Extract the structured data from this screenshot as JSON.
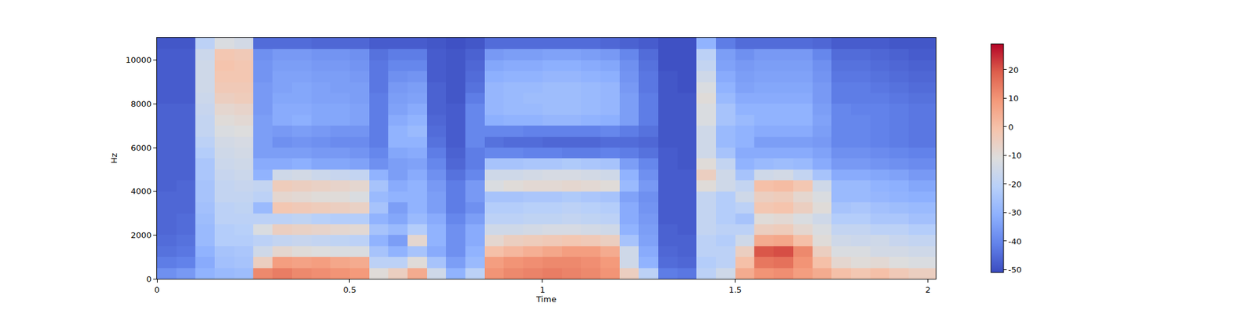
{
  "chart_data": {
    "type": "heatmap",
    "x_label": "Time",
    "y_label": "Hz",
    "x_edges": [
      0,
      0.05,
      0.1,
      0.15,
      0.2,
      0.25,
      0.3,
      0.35,
      0.4,
      0.45,
      0.5,
      0.55,
      0.6,
      0.65,
      0.7,
      0.75,
      0.8,
      0.85,
      0.9,
      0.95,
      1.0,
      1.05,
      1.1,
      1.15,
      1.2,
      1.25,
      1.3,
      1.35,
      1.4,
      1.45,
      1.5,
      1.55,
      1.6,
      1.65,
      1.7,
      1.75,
      1.8,
      1.85,
      1.9,
      1.95,
      2.02
    ],
    "y_edges": [
      0,
      500,
      1000,
      1500,
      2000,
      2500,
      3000,
      3500,
      4000,
      4500,
      5000,
      5500,
      6000,
      6500,
      7000,
      7500,
      8000,
      8500,
      9000,
      9500,
      10000,
      10500,
      11025
    ],
    "cells": [
      [
        -38,
        -42,
        -44,
        -45,
        -46,
        -46,
        -46,
        -46,
        -47,
        -47,
        -47,
        -47,
        -47,
        -47,
        -47,
        -47,
        -48,
        -48,
        -48,
        -48,
        -48,
        -49
      ],
      [
        -36,
        -41,
        -43,
        -44,
        -45,
        -45,
        -46,
        -46,
        -46,
        -47,
        -47,
        -47,
        -47,
        -47,
        -47,
        -47,
        -48,
        -48,
        -48,
        -48,
        -48,
        -49
      ],
      [
        -30,
        -32,
        -30,
        -28,
        -28,
        -27,
        -26,
        -25,
        -25,
        -24,
        -24,
        -22,
        -20,
        -18,
        -18,
        -17,
        -16,
        -15,
        -15,
        -15,
        -16,
        -20
      ],
      [
        -28,
        -26,
        -25,
        -22,
        -22,
        -20,
        -20,
        -18,
        -18,
        -17,
        -16,
        -15,
        -14,
        -12,
        -10,
        -8,
        -5,
        -3,
        -2,
        -1,
        -2,
        -12
      ],
      [
        -27,
        -25,
        -24,
        -22,
        -21,
        -20,
        -19,
        -18,
        -17,
        -16,
        -15,
        -14,
        -13,
        -11,
        -9,
        -7,
        -4,
        -3,
        -2,
        -2,
        -3,
        -14
      ],
      [
        12,
        -5,
        -15,
        -20,
        -12,
        -20,
        -28,
        -20,
        -18,
        -30,
        -32,
        -35,
        -35,
        -35,
        -35,
        -36,
        -36,
        -36,
        -37,
        -37,
        -38,
        -45
      ],
      [
        14,
        8,
        -8,
        -18,
        -5,
        -20,
        -2,
        -8,
        -4,
        -15,
        -32,
        -35,
        -38,
        -36,
        -32,
        -32,
        -33,
        -34,
        -34,
        -35,
        -36,
        -45
      ],
      [
        12,
        7,
        -10,
        -17,
        -6,
        -19,
        -3,
        -9,
        -5,
        -14,
        -31,
        -35,
        -37,
        -35,
        -31,
        -32,
        -33,
        -33,
        -34,
        -35,
        -36,
        -45
      ],
      [
        11,
        8,
        -11,
        -18,
        -7,
        -21,
        -4,
        -10,
        -6,
        -16,
        -33,
        -36,
        -38,
        -36,
        -33,
        -33,
        -34,
        -34,
        -35,
        -36,
        -37,
        -46
      ],
      [
        10,
        6,
        -12,
        -19,
        -8,
        -22,
        -5,
        -10,
        -7,
        -17,
        -33,
        -36,
        -39,
        -37,
        -33,
        -33,
        -34,
        -35,
        -35,
        -36,
        -37,
        -46
      ],
      [
        9,
        5,
        -12,
        -20,
        -9,
        -22,
        -6,
        -12,
        -8,
        -18,
        -34,
        -37,
        -39,
        -37,
        -34,
        -34,
        -35,
        -35,
        -36,
        -37,
        -38,
        -46
      ],
      [
        -10,
        -20,
        -25,
        -30,
        -25,
        -30,
        -25,
        -28,
        -25,
        -30,
        -38,
        -40,
        -42,
        -42,
        -42,
        -42,
        -42,
        -43,
        -43,
        -43,
        -44,
        -48
      ],
      [
        -5,
        -20,
        -30,
        -35,
        -28,
        -33,
        -35,
        -30,
        -32,
        -35,
        -35,
        -33,
        -30,
        -30,
        -32,
        -34,
        -35,
        -36,
        -38,
        -40,
        -42,
        -48
      ],
      [
        5,
        -10,
        -25,
        -8,
        -22,
        -28,
        -30,
        -30,
        -30,
        -32,
        -34,
        -32,
        -30,
        -28,
        -30,
        -32,
        -34,
        -35,
        -37,
        -40,
        -42,
        -48
      ],
      [
        -15,
        -25,
        -32,
        -30,
        -30,
        -32,
        -35,
        -35,
        -36,
        -38,
        -40,
        -42,
        -44,
        -45,
        -46,
        -47,
        -47,
        -47,
        -48,
        -48,
        -48,
        -49
      ],
      [
        -30,
        -35,
        -38,
        -38,
        -38,
        -40,
        -42,
        -42,
        -42,
        -44,
        -46,
        -47,
        -48,
        -48,
        -48,
        -48,
        -49,
        -49,
        -49,
        -49,
        -49,
        -50
      ],
      [
        -20,
        -28,
        -30,
        -32,
        -32,
        -35,
        -38,
        -36,
        -36,
        -40,
        -42,
        -42,
        -40,
        -40,
        -40,
        -40,
        -42,
        -44,
        -45,
        -46,
        -47,
        -49
      ],
      [
        10,
        8,
        0,
        -8,
        -15,
        -20,
        -22,
        -25,
        -12,
        -15,
        -25,
        -40,
        -44,
        -40,
        -31,
        -29,
        -29,
        -29,
        -31,
        -33,
        -36,
        -45
      ],
      [
        12,
        10,
        2,
        -5,
        -15,
        -20,
        -22,
        -25,
        -10,
        -15,
        -25,
        -40,
        -45,
        -40,
        -30,
        -28,
        -28,
        -28,
        -30,
        -32,
        -35,
        -45
      ],
      [
        13,
        11,
        4,
        -4,
        -14,
        -19,
        -21,
        -24,
        -9,
        -14,
        -24,
        -41,
        -45,
        -41,
        -30,
        -28,
        -27,
        -28,
        -30,
        -32,
        -35,
        -45
      ],
      [
        14,
        12,
        6,
        -3,
        -13,
        -19,
        -21,
        -24,
        -9,
        -13,
        -24,
        -41,
        -46,
        -41,
        -29,
        -27,
        -27,
        -27,
        -29,
        -31,
        -34,
        -45
      ],
      [
        13,
        12,
        8,
        -2,
        -13,
        -18,
        -20,
        -23,
        -8,
        -13,
        -23,
        -42,
        -46,
        -41,
        -29,
        -27,
        -27,
        -27,
        -29,
        -31,
        -34,
        -45
      ],
      [
        12,
        11,
        8,
        -3,
        -14,
        -19,
        -21,
        -24,
        -9,
        -14,
        -24,
        -42,
        -46,
        -41,
        -30,
        -28,
        -28,
        -28,
        -30,
        -32,
        -35,
        -45
      ],
      [
        10,
        9,
        5,
        -5,
        -15,
        -20,
        -22,
        -25,
        -10,
        -15,
        -25,
        -41,
        -45,
        -40,
        -31,
        -29,
        -29,
        -29,
        -31,
        -33,
        -36,
        -46
      ],
      [
        -5,
        -15,
        -15,
        -25,
        -30,
        -32,
        -32,
        -34,
        -28,
        -30,
        -35,
        -42,
        -45,
        -42,
        -35,
        -35,
        -35,
        -36,
        -37,
        -38,
        -40,
        -47
      ],
      [
        -20,
        -30,
        -32,
        -34,
        -35,
        -36,
        -37,
        -38,
        -36,
        -38,
        -40,
        -44,
        -46,
        -44,
        -42,
        -42,
        -42,
        -43,
        -43,
        -44,
        -45,
        -48
      ],
      [
        -42,
        -45,
        -46,
        -47,
        -47,
        -48,
        -48,
        -48,
        -48,
        -48,
        -48,
        -48,
        -49,
        -49,
        -49,
        -49,
        -49,
        -49,
        -49,
        -50,
        -50,
        -50
      ],
      [
        -43,
        -46,
        -47,
        -47,
        -48,
        -48,
        -48,
        -48,
        -48,
        -48,
        -49,
        -49,
        -49,
        -49,
        -49,
        -49,
        -49,
        -50,
        -50,
        -50,
        -50,
        -50
      ],
      [
        -20,
        -22,
        -20,
        -20,
        -18,
        -18,
        -18,
        -18,
        -10,
        -5,
        -10,
        -15,
        -15,
        -15,
        -12,
        -12,
        -10,
        -12,
        -15,
        -18,
        -20,
        -30
      ],
      [
        -15,
        -20,
        -20,
        -22,
        -20,
        -22,
        -22,
        -22,
        -15,
        -15,
        -18,
        -25,
        -28,
        -28,
        -25,
        -25,
        -28,
        -30,
        -32,
        -34,
        -35,
        -42
      ],
      [
        5,
        0,
        -5,
        -15,
        -20,
        -25,
        -20,
        -15,
        -18,
        -25,
        -30,
        -32,
        -30,
        -30,
        -28,
        -30,
        -32,
        -34,
        -35,
        -36,
        -38,
        -45
      ],
      [
        10,
        15,
        20,
        5,
        -5,
        -10,
        -2,
        -5,
        0,
        -15,
        -28,
        -32,
        -35,
        -32,
        -30,
        -30,
        -32,
        -33,
        -34,
        -35,
        -36,
        -45
      ],
      [
        11,
        16,
        21,
        6,
        -4,
        -9,
        -1,
        -4,
        1,
        -14,
        -27,
        -32,
        -35,
        -32,
        -30,
        -30,
        -32,
        -33,
        -34,
        -35,
        -36,
        -45
      ],
      [
        8,
        10,
        12,
        0,
        -8,
        -12,
        -5,
        -8,
        -2,
        -18,
        -28,
        -32,
        -35,
        -32,
        -30,
        -30,
        -32,
        -33,
        -34,
        -35,
        -36,
        -45
      ],
      [
        5,
        0,
        -5,
        -10,
        -12,
        -15,
        -10,
        -12,
        -15,
        -25,
        -32,
        -34,
        -36,
        -35,
        -34,
        -35,
        -36,
        -36,
        -37,
        -38,
        -40,
        -46
      ],
      [
        0,
        -8,
        -12,
        -15,
        -18,
        -22,
        -25,
        -28,
        -28,
        -32,
        -36,
        -38,
        -40,
        -40,
        -40,
        -40,
        -42,
        -42,
        -43,
        -44,
        -45,
        -48
      ],
      [
        -2,
        -10,
        -12,
        -16,
        -18,
        -22,
        -24,
        -28,
        -28,
        -32,
        -36,
        -38,
        -40,
        -40,
        -40,
        -41,
        -42,
        -42,
        -43,
        -44,
        -45,
        -48
      ],
      [
        0,
        -9,
        -14,
        -15,
        -20,
        -24,
        -26,
        -29,
        -30,
        -33,
        -37,
        -39,
        -41,
        -41,
        -41,
        -41,
        -42,
        -43,
        -44,
        -45,
        -46,
        -48
      ],
      [
        -3,
        -11,
        -14,
        -17,
        -20,
        -24,
        -27,
        -30,
        -31,
        -34,
        -38,
        -40,
        -42,
        -42,
        -42,
        -42,
        -43,
        -44,
        -45,
        -46,
        -47,
        -49
      ],
      [
        -5,
        -12,
        -15,
        -18,
        -22,
        -26,
        -28,
        -31,
        -33,
        -36,
        -39,
        -41,
        -43,
        -43,
        -43,
        -43,
        -44,
        -45,
        -46,
        -47,
        -48,
        -49
      ]
    ],
    "xlim": [
      0,
      2.02
    ],
    "xticks": [
      0,
      0.5,
      1,
      1.5,
      2
    ],
    "ylim": [
      0,
      11025
    ],
    "yticks": [
      0,
      2000,
      4000,
      6000,
      8000,
      10000
    ],
    "colorbar_range": [
      -51,
      29
    ],
    "colorbar_ticks": [
      -50,
      -40,
      -30,
      -20,
      -10,
      0,
      10,
      20
    ]
  }
}
